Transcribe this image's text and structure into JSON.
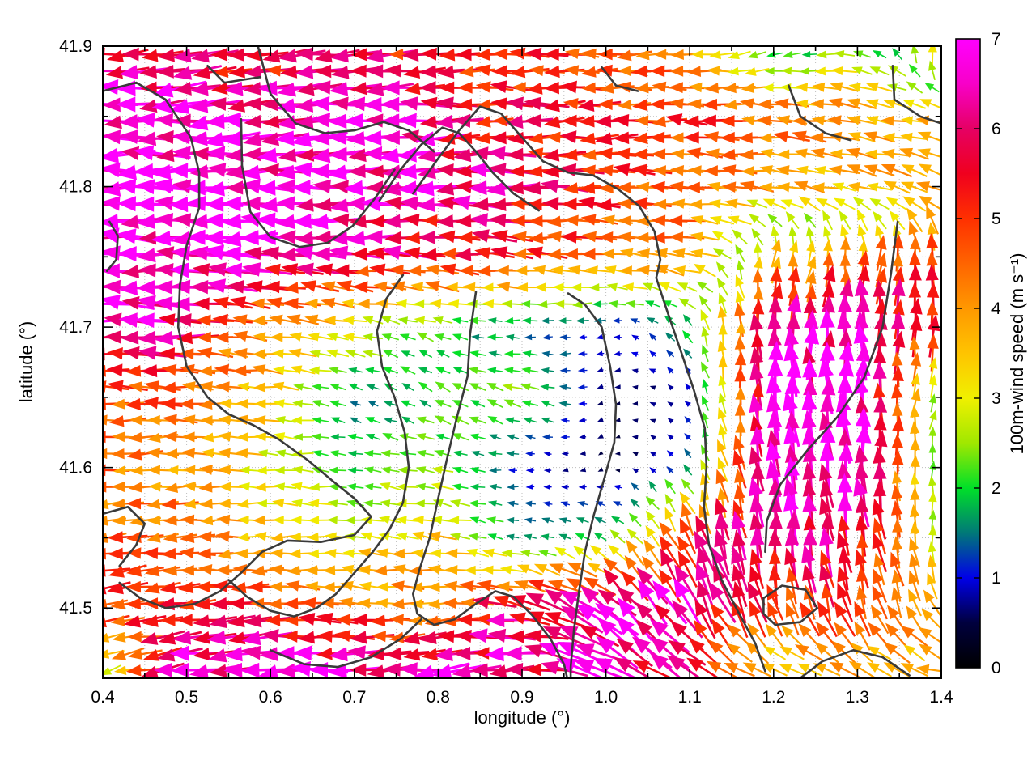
{
  "chart_data": {
    "type": "quiver",
    "title": "",
    "xlabel": "longitude (°)",
    "ylabel": "latitude (°)",
    "colorbar_label": "100m-wind speed (m s⁻¹)",
    "xlim": [
      0.4,
      1.4
    ],
    "ylim": [
      41.45,
      41.9
    ],
    "clim": [
      0,
      7
    ],
    "grid_on": true,
    "x_ticks": [
      0.4,
      0.5,
      0.6,
      0.7,
      0.8,
      0.9,
      1.0,
      1.1,
      1.2,
      1.3,
      1.4
    ],
    "x_tick_labels": [
      "0.4",
      "0.5",
      "0.6",
      "0.7",
      "0.8",
      "0.9",
      "1.0",
      "1.1",
      "1.2",
      "1.3",
      "1.4"
    ],
    "x_minor_ticks": [
      0.45,
      0.55,
      0.65,
      0.75,
      0.85,
      0.95,
      1.05,
      1.15,
      1.25,
      1.35
    ],
    "y_ticks": [
      41.5,
      41.6,
      41.7,
      41.8,
      41.9
    ],
    "y_tick_labels": [
      "41.5",
      "41.6",
      "41.7",
      "41.8",
      "41.9"
    ],
    "y_minor_ticks": [
      41.55,
      41.65,
      41.75,
      41.85
    ],
    "colorbar_ticks": [
      0,
      1,
      2,
      3,
      4,
      5,
      6,
      7
    ],
    "colorbar_tick_labels": [
      "0",
      "1",
      "2",
      "3",
      "4",
      "5",
      "6",
      "7"
    ],
    "palette": [
      [
        0.0,
        "#000000"
      ],
      [
        0.5,
        "#00003e"
      ],
      [
        1.0,
        "#0000e8"
      ],
      [
        1.5,
        "#007878"
      ],
      [
        2.0,
        "#00e028"
      ],
      [
        2.5,
        "#a0e800"
      ],
      [
        3.0,
        "#f0f000"
      ],
      [
        3.5,
        "#ffc400"
      ],
      [
        4.0,
        "#ff9800"
      ],
      [
        4.5,
        "#ff6400"
      ],
      [
        5.0,
        "#ff3000"
      ],
      [
        5.5,
        "#f0001e"
      ],
      [
        6.0,
        "#e60064"
      ],
      [
        6.5,
        "#f800c8"
      ],
      [
        7.0,
        "#ff00ff"
      ]
    ],
    "field": {
      "lons": [
        0.4,
        0.5,
        0.6,
        0.7,
        0.8,
        0.9,
        1.0,
        1.1,
        1.2,
        1.3,
        1.4
      ],
      "lats": [
        41.45,
        41.5,
        41.55,
        41.6,
        41.65,
        41.7,
        41.75,
        41.8,
        41.85,
        41.9
      ],
      "speed": [
        [
          2.0,
          7.0,
          7.0,
          7.0,
          7.0,
          6.5,
          6.5,
          6.0,
          4.0,
          4.0,
          4.5
        ],
        [
          5.0,
          5.5,
          5.0,
          4.5,
          4.0,
          6.0,
          6.5,
          6.5,
          5.0,
          5.0,
          4.0
        ],
        [
          4.5,
          4.5,
          3.5,
          3.0,
          3.5,
          1.5,
          2.0,
          5.0,
          6.5,
          6.0,
          2.5
        ],
        [
          4.5,
          4.0,
          3.0,
          2.0,
          2.5,
          1.0,
          0.5,
          1.5,
          7.0,
          7.0,
          2.0
        ],
        [
          5.0,
          4.5,
          3.5,
          1.5,
          2.0,
          2.5,
          0.6,
          0.8,
          7.0,
          7.0,
          1.8
        ],
        [
          6.5,
          6.0,
          4.0,
          3.0,
          2.0,
          1.5,
          1.0,
          2.0,
          6.0,
          6.5,
          5.5
        ],
        [
          7.0,
          7.0,
          6.5,
          6.0,
          5.5,
          5.0,
          4.5,
          4.0,
          3.5,
          4.0,
          5.0
        ],
        [
          7.0,
          7.0,
          7.0,
          7.0,
          6.5,
          6.0,
          5.0,
          4.5,
          4.0,
          3.5,
          4.0
        ],
        [
          7.0,
          7.0,
          6.5,
          6.5,
          6.0,
          5.5,
          5.0,
          5.0,
          4.5,
          4.0,
          3.5
        ],
        [
          6.5,
          5.5,
          5.0,
          6.0,
          5.0,
          5.0,
          4.5,
          4.0,
          1.5,
          2.5,
          3.5
        ]
      ],
      "dir_deg": [
        [
          210,
          188,
          185,
          182,
          185,
          183,
          160,
          150,
          170,
          160,
          170
        ],
        [
          190,
          185,
          180,
          175,
          185,
          168,
          140,
          118,
          108,
          105,
          120
        ],
        [
          185,
          182,
          180,
          175,
          170,
          170,
          150,
          115,
          95,
          100,
          90
        ],
        [
          182,
          182,
          178,
          170,
          168,
          180,
          220,
          130,
          95,
          95,
          85
        ],
        [
          178,
          180,
          176,
          160,
          150,
          160,
          200,
          140,
          94,
          92,
          70
        ],
        [
          176,
          176,
          172,
          165,
          160,
          185,
          195,
          120,
          88,
          90,
          87
        ],
        [
          178,
          178,
          180,
          178,
          178,
          176,
          175,
          172,
          75,
          80,
          88
        ],
        [
          180,
          180,
          180,
          180,
          180,
          180,
          178,
          176,
          174,
          165,
          160
        ],
        [
          183,
          183,
          185,
          183,
          180,
          180,
          182,
          178,
          175,
          172,
          170
        ],
        [
          185,
          190,
          185,
          182,
          180,
          178,
          180,
          185,
          200,
          170,
          75
        ]
      ]
    },
    "contours": [
      [
        [
          0.4,
          41.868
        ],
        [
          0.44,
          41.874
        ],
        [
          0.475,
          41.862
        ],
        [
          0.505,
          41.835
        ],
        [
          0.515,
          41.81
        ],
        [
          0.515,
          41.785
        ],
        [
          0.5,
          41.758
        ],
        [
          0.492,
          41.73
        ],
        [
          0.49,
          41.7
        ],
        [
          0.5,
          41.672
        ],
        [
          0.525,
          41.65
        ],
        [
          0.55,
          41.638
        ],
        [
          0.58,
          41.63
        ],
        [
          0.61,
          41.62
        ],
        [
          0.645,
          41.605
        ],
        [
          0.675,
          41.59
        ],
        [
          0.7,
          41.578
        ],
        [
          0.72,
          41.565
        ],
        [
          0.7,
          41.552
        ],
        [
          0.66,
          41.547
        ],
        [
          0.62,
          41.548
        ],
        [
          0.59,
          41.54
        ],
        [
          0.565,
          41.525
        ],
        [
          0.54,
          41.512
        ],
        [
          0.51,
          41.503
        ],
        [
          0.475,
          41.5
        ],
        [
          0.445,
          41.507
        ],
        [
          0.42,
          41.518
        ]
      ],
      [
        [
          0.585,
          41.9
        ],
        [
          0.6,
          41.866
        ],
        [
          0.63,
          41.845
        ],
        [
          0.665,
          41.838
        ],
        [
          0.7,
          41.84
        ],
        [
          0.735,
          41.846
        ],
        [
          0.765,
          41.84
        ],
        [
          0.795,
          41.825
        ]
      ],
      [
        [
          0.565,
          41.848
        ],
        [
          0.566,
          41.815
        ],
        [
          0.576,
          41.782
        ],
        [
          0.6,
          41.764
        ],
        [
          0.635,
          41.757
        ],
        [
          0.668,
          41.76
        ],
        [
          0.698,
          41.772
        ],
        [
          0.725,
          41.792
        ],
        [
          0.748,
          41.812
        ]
      ],
      [
        [
          0.77,
          41.795
        ],
        [
          0.8,
          41.82
        ],
        [
          0.825,
          41.84
        ],
        [
          0.85,
          41.857
        ],
        [
          0.875,
          41.852
        ],
        [
          0.9,
          41.835
        ],
        [
          0.925,
          41.818
        ],
        [
          0.955,
          41.81
        ],
        [
          0.985,
          41.808
        ],
        [
          1.015,
          41.798
        ],
        [
          1.04,
          41.786
        ],
        [
          1.058,
          41.768
        ],
        [
          1.065,
          41.748
        ],
        [
          1.06,
          41.735
        ]
      ],
      [
        [
          0.73,
          41.79
        ],
        [
          0.755,
          41.812
        ],
        [
          0.78,
          41.83
        ],
        [
          0.805,
          41.842
        ],
        [
          0.825,
          41.838
        ],
        [
          0.845,
          41.825
        ],
        [
          0.865,
          41.81
        ],
        [
          0.89,
          41.795
        ],
        [
          0.92,
          41.783
        ]
      ],
      [
        [
          0.758,
          41.737
        ],
        [
          0.738,
          41.72
        ],
        [
          0.727,
          41.697
        ],
        [
          0.733,
          41.672
        ],
        [
          0.748,
          41.65
        ],
        [
          0.76,
          41.625
        ],
        [
          0.765,
          41.6
        ],
        [
          0.758,
          41.575
        ],
        [
          0.742,
          41.556
        ],
        [
          0.722,
          41.54
        ],
        [
          0.7,
          41.525
        ],
        [
          0.678,
          41.51
        ],
        [
          0.655,
          41.5
        ],
        [
          0.628,
          41.494
        ],
        [
          0.6,
          41.498
        ],
        [
          0.572,
          41.508
        ],
        [
          0.55,
          41.52
        ]
      ],
      [
        [
          0.845,
          41.725
        ],
        [
          0.838,
          41.695
        ],
        [
          0.835,
          41.665
        ],
        [
          0.822,
          41.635
        ],
        [
          0.81,
          41.605
        ],
        [
          0.8,
          41.578
        ],
        [
          0.79,
          41.55
        ],
        [
          0.778,
          41.528
        ],
        [
          0.77,
          41.51
        ],
        [
          0.775,
          41.496
        ],
        [
          0.795,
          41.488
        ],
        [
          0.82,
          41.492
        ],
        [
          0.845,
          41.503
        ],
        [
          0.868,
          41.512
        ],
        [
          0.89,
          41.508
        ],
        [
          0.912,
          41.495
        ],
        [
          0.934,
          41.478
        ],
        [
          0.95,
          41.46
        ],
        [
          0.955,
          41.447
        ]
      ],
      [
        [
          0.955,
          41.724
        ],
        [
          0.975,
          41.716
        ],
        [
          0.995,
          41.7
        ],
        [
          1.005,
          41.672
        ],
        [
          1.012,
          41.645
        ],
        [
          1.01,
          41.618
        ],
        [
          0.998,
          41.592
        ],
        [
          0.985,
          41.565
        ],
        [
          0.975,
          41.54
        ],
        [
          0.968,
          41.512
        ],
        [
          0.962,
          41.485
        ],
        [
          0.958,
          41.458
        ],
        [
          0.958,
          41.447
        ]
      ],
      [
        [
          1.06,
          41.735
        ],
        [
          1.075,
          41.708
        ],
        [
          1.09,
          41.682
        ],
        [
          1.105,
          41.655
        ],
        [
          1.118,
          41.628
        ],
        [
          1.12,
          41.6
        ],
        [
          1.117,
          41.572
        ],
        [
          1.123,
          41.545
        ],
        [
          1.138,
          41.52
        ],
        [
          1.158,
          41.497
        ],
        [
          1.178,
          41.475
        ],
        [
          1.19,
          41.455
        ]
      ],
      [
        [
          1.348,
          41.775
        ],
        [
          1.34,
          41.738
        ],
        [
          1.33,
          41.7
        ],
        [
          1.308,
          41.664
        ],
        [
          1.276,
          41.636
        ],
        [
          1.24,
          41.612
        ],
        [
          1.208,
          41.588
        ],
        [
          1.192,
          41.562
        ],
        [
          1.19,
          41.54
        ]
      ],
      [
        [
          1.342,
          41.886
        ],
        [
          1.344,
          41.862
        ],
        [
          1.375,
          41.85
        ],
        [
          1.4,
          41.845
        ]
      ],
      [
        [
          1.218,
          41.872
        ],
        [
          1.232,
          41.85
        ],
        [
          1.262,
          41.838
        ],
        [
          1.292,
          41.833
        ]
      ],
      [
        [
          0.525,
          41.886
        ],
        [
          0.545,
          41.874
        ],
        [
          0.588,
          41.878
        ]
      ],
      [
        [
          0.995,
          41.885
        ],
        [
          1.012,
          41.872
        ],
        [
          1.038,
          41.868
        ]
      ],
      [
        [
          1.188,
          41.507
        ],
        [
          1.21,
          41.516
        ],
        [
          1.238,
          41.513
        ],
        [
          1.252,
          41.5
        ],
        [
          1.232,
          41.49
        ],
        [
          1.202,
          41.488
        ],
        [
          1.188,
          41.496
        ],
        [
          1.188,
          41.507
        ]
      ],
      [
        [
          0.6,
          41.47
        ],
        [
          0.64,
          41.46
        ],
        [
          0.68,
          41.458
        ],
        [
          0.72,
          41.465
        ],
        [
          0.755,
          41.478
        ],
        [
          0.78,
          41.492
        ]
      ],
      [
        [
          1.225,
          41.447
        ],
        [
          1.258,
          41.462
        ],
        [
          1.295,
          41.47
        ],
        [
          1.33,
          41.465
        ],
        [
          1.362,
          41.452
        ]
      ],
      [
        [
          0.408,
          41.775
        ],
        [
          0.418,
          41.765
        ],
        [
          0.416,
          41.748
        ],
        [
          0.405,
          41.74
        ]
      ],
      [
        [
          0.4,
          41.567
        ],
        [
          0.43,
          41.572
        ],
        [
          0.45,
          41.56
        ],
        [
          0.44,
          41.545
        ],
        [
          0.42,
          41.53
        ]
      ]
    ],
    "render": {
      "nx": 48,
      "ny": 38,
      "length_scale": 9,
      "dir_jitter_deg": 18,
      "speed_jitter": 0.28
    },
    "legend_position": "right-colorbar"
  }
}
